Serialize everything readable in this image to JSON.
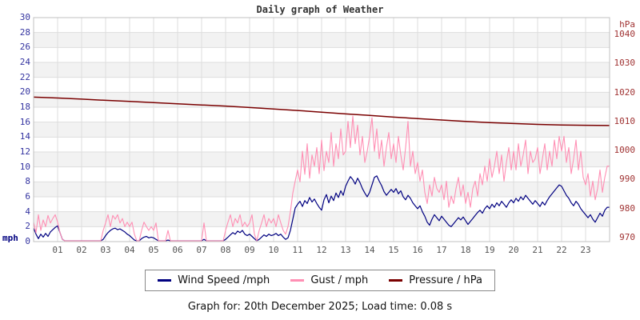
{
  "colors": {
    "band": "#f2f2f2",
    "grid": "#dddddd",
    "plot_border": "#c0c0c0",
    "left_axis_text": "#3333a0",
    "right_axis_text": "#a03333",
    "x_axis_text": "#555555",
    "wind": "#000080",
    "gust": "#ff8fb4",
    "pressure": "#7a0000"
  },
  "footer": {
    "text": "Graph for: 20th December 2025; Load time: 0.08 s"
  },
  "chart_data": {
    "type": "line",
    "title": "Daily graph of Weather",
    "legend_position": "bottom",
    "grid": "on",
    "x_axis": {
      "min_hour": 0,
      "max_hour": 24,
      "tick_hours": [
        1,
        2,
        3,
        4,
        5,
        6,
        7,
        8,
        9,
        10,
        11,
        12,
        13,
        14,
        15,
        16,
        17,
        18,
        19,
        20,
        21,
        22,
        23
      ],
      "tick_labels": [
        "01",
        "02",
        "03",
        "04",
        "05",
        "06",
        "07",
        "08",
        "09",
        "10",
        "11",
        "12",
        "13",
        "14",
        "15",
        "16",
        "17",
        "18",
        "19",
        "20",
        "21",
        "22",
        "23"
      ]
    },
    "left_axis": {
      "unit": "mph",
      "min": 0,
      "max": 30,
      "tick_step": 2,
      "ticks": [
        0,
        2,
        4,
        6,
        8,
        10,
        12,
        14,
        16,
        18,
        20,
        22,
        24,
        26,
        28,
        30
      ]
    },
    "right_axis": {
      "unit": "hPa",
      "range": [
        968.6,
        1045.8
      ],
      "ticks": [
        970,
        980,
        990,
        1000,
        1010,
        1020,
        1030,
        1040
      ]
    },
    "series": [
      {
        "key": "wind-speed",
        "name": "Wind Speed /mph",
        "color": "#000080",
        "axis": "left",
        "stroke_width": 1.2,
        "step_hours": 0.1,
        "values": [
          1.8,
          1.0,
          0.4,
          1.0,
          0.6,
          1.1,
          0.7,
          1.3,
          1.6,
          1.9,
          2.1,
          1.2,
          0.3,
          0,
          0,
          0,
          0,
          0,
          0,
          0,
          0,
          0,
          0,
          0,
          0,
          0,
          0,
          0,
          0,
          0.3,
          0.8,
          1.2,
          1.5,
          1.7,
          1.8,
          1.6,
          1.7,
          1.5,
          1.3,
          1.0,
          0.8,
          0.5,
          0.2,
          0,
          0,
          0.4,
          0.6,
          0.7,
          0.5,
          0.6,
          0.5,
          0.3,
          0,
          0,
          0,
          0,
          0.2,
          0,
          0,
          0,
          0,
          0,
          0,
          0,
          0,
          0,
          0,
          0,
          0,
          0,
          0,
          0.3,
          0,
          0,
          0,
          0,
          0,
          0,
          0,
          0,
          0.3,
          0.6,
          0.9,
          1.2,
          1.0,
          1.4,
          1.2,
          1.5,
          1.0,
          0.8,
          1.0,
          0.7,
          0.4,
          0,
          0.3,
          0.6,
          0.9,
          0.7,
          1.0,
          0.8,
          0.9,
          1.1,
          0.8,
          1.0,
          0.6,
          0.3,
          0.5,
          1.5,
          3.0,
          4.5,
          5.0,
          5.4,
          4.7,
          5.5,
          5.1,
          5.9,
          5.3,
          5.7,
          5.1,
          4.6,
          4.2,
          5.6,
          6.3,
          5.2,
          6.1,
          5.5,
          6.5,
          5.9,
          6.8,
          6.2,
          7.4,
          8.1,
          8.7,
          8.3,
          7.7,
          8.5,
          7.9,
          7.1,
          6.5,
          6.0,
          6.6,
          7.6,
          8.6,
          8.8,
          8.1,
          7.5,
          6.7,
          6.2,
          6.6,
          7.0,
          6.6,
          7.1,
          6.4,
          6.8,
          6.0,
          5.6,
          6.2,
          5.8,
          5.2,
          4.8,
          4.4,
          4.8,
          4.0,
          3.4,
          2.6,
          2.2,
          3.0,
          3.6,
          3.2,
          2.8,
          3.4,
          3.0,
          2.6,
          2.2,
          2.0,
          2.4,
          2.8,
          3.2,
          2.9,
          3.3,
          2.8,
          2.3,
          2.7,
          3.1,
          3.5,
          3.9,
          4.2,
          3.8,
          4.4,
          4.8,
          4.4,
          5.0,
          4.6,
          5.2,
          4.8,
          5.4,
          5.0,
          4.6,
          5.2,
          5.6,
          5.2,
          5.8,
          5.4,
          6.0,
          5.6,
          6.2,
          5.8,
          5.4,
          5.0,
          5.5,
          5.1,
          4.7,
          5.3,
          4.9,
          5.5,
          6.0,
          6.4,
          6.8,
          7.2,
          7.6,
          7.4,
          6.8,
          6.2,
          5.8,
          5.2,
          4.8,
          5.4,
          5.0,
          4.4,
          4.0,
          3.6,
          3.2,
          3.6,
          3.0,
          2.6,
          3.2,
          3.8,
          3.4,
          4.2,
          4.6
        ]
      },
      {
        "key": "gust",
        "name": "Gust / mph",
        "color": "#ff8fb4",
        "axis": "left",
        "stroke_width": 1.1,
        "step_hours": 0.1,
        "values": [
          2.6,
          1.2,
          3.6,
          1.5,
          2.9,
          2.0,
          3.5,
          2.5,
          3.1,
          3.6,
          2.6,
          1.2,
          0.3,
          0,
          0,
          0,
          0,
          0,
          0,
          0,
          0,
          0,
          0,
          0,
          0,
          0,
          0,
          0,
          0,
          1.5,
          2.5,
          3.6,
          2.0,
          3.5,
          3.0,
          3.6,
          2.5,
          3.1,
          2.0,
          2.6,
          2.0,
          2.6,
          1.0,
          0,
          0,
          1.5,
          2.6,
          2.0,
          1.5,
          2.0,
          1.5,
          2.5,
          0,
          0,
          0,
          0,
          1.5,
          0,
          0,
          0,
          0,
          0,
          0,
          0,
          0,
          0,
          0,
          0,
          0,
          0,
          0,
          2.5,
          0,
          0,
          0,
          0,
          0,
          0,
          0,
          0,
          1.5,
          2.6,
          3.6,
          2.0,
          3.1,
          2.5,
          3.6,
          2.0,
          2.6,
          2.0,
          2.5,
          3.6,
          1.0,
          0,
          1.5,
          2.5,
          3.6,
          2.0,
          3.1,
          2.5,
          3.1,
          2.0,
          3.6,
          2.5,
          1.5,
          1.0,
          2.0,
          4.0,
          6.5,
          8.1,
          9.6,
          8.0,
          12.1,
          9.0,
          13.1,
          8.5,
          11.6,
          10.1,
          12.6,
          9.1,
          13.6,
          9.5,
          12.1,
          10.6,
          14.6,
          10.1,
          13.1,
          11.1,
          15.1,
          11.6,
          12.1,
          16.1,
          12.6,
          16.8,
          13.1,
          15.6,
          11.6,
          14.1,
          10.6,
          12.1,
          14.1,
          16.6,
          12.1,
          15.1,
          11.1,
          13.6,
          10.1,
          12.6,
          14.6,
          11.1,
          13.1,
          10.6,
          14.1,
          11.6,
          9.6,
          12.6,
          16.1,
          10.1,
          12.1,
          9.1,
          10.6,
          8.1,
          9.6,
          6.6,
          5.1,
          7.6,
          6.1,
          8.6,
          7.1,
          6.6,
          7.6,
          5.6,
          8.1,
          4.6,
          6.1,
          5.1,
          7.1,
          8.6,
          6.1,
          7.6,
          5.1,
          6.6,
          4.6,
          7.1,
          8.1,
          6.1,
          9.1,
          7.6,
          10.1,
          8.1,
          11.1,
          8.6,
          10.1,
          12.1,
          9.1,
          11.6,
          8.1,
          10.6,
          12.6,
          9.6,
          12.1,
          9.6,
          13.1,
          10.1,
          11.6,
          13.6,
          9.1,
          12.1,
          10.6,
          11.1,
          12.6,
          9.1,
          11.1,
          13.1,
          9.6,
          12.1,
          10.1,
          13.6,
          11.1,
          14.1,
          12.1,
          14.1,
          10.6,
          12.6,
          9.1,
          11.1,
          13.6,
          9.6,
          12.1,
          8.6,
          7.6,
          9.1,
          6.1,
          8.1,
          5.6,
          7.1,
          9.6,
          6.6,
          8.6,
          10.1
        ]
      },
      {
        "key": "pressure",
        "name": "Pressure / hPa",
        "color": "#7a0000",
        "axis": "right",
        "stroke_width": 1.5,
        "step_hours": 1,
        "values": [
          1018.4,
          1018.1,
          1017.7,
          1017.3,
          1016.9,
          1016.5,
          1016.1,
          1015.7,
          1015.3,
          1014.8,
          1014.3,
          1013.8,
          1013.2,
          1012.6,
          1012.1,
          1011.5,
          1011.0,
          1010.5,
          1010.0,
          1009.6,
          1009.3,
          1009.0,
          1008.8,
          1008.7,
          1008.6
        ]
      }
    ]
  }
}
